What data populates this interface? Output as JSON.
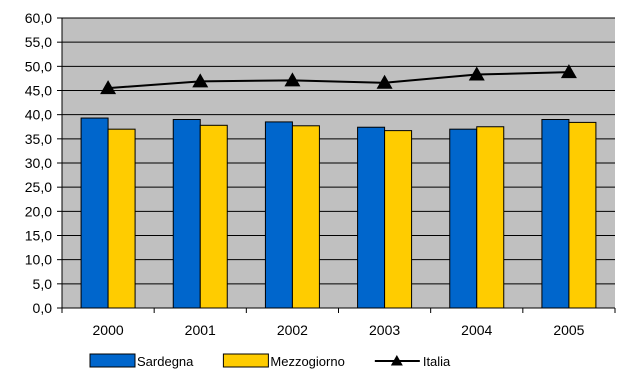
{
  "chart_data": {
    "type": "bar",
    "title": "",
    "xlabel": "",
    "ylabel": "",
    "categories": [
      "2000",
      "2001",
      "2002",
      "2003",
      "2004",
      "2005"
    ],
    "ylim": [
      0,
      60
    ],
    "y_ticks": [
      "0,0",
      "5,0",
      "10,0",
      "15,0",
      "20,0",
      "25,0",
      "30,0",
      "35,0",
      "40,0",
      "45,0",
      "50,0",
      "55,0",
      "60,0"
    ],
    "grid": true,
    "legend_position": "bottom",
    "plot_background": "#c0c0c0",
    "series": [
      {
        "name": "Sardegna",
        "kind": "bar",
        "color": "#0066cc",
        "values": [
          39.3,
          39.0,
          38.5,
          37.4,
          37.0,
          39.0
        ]
      },
      {
        "name": "Mezzogiorno",
        "kind": "bar",
        "color": "#ffcc00",
        "values": [
          37.0,
          37.8,
          37.7,
          36.7,
          37.5,
          38.4
        ]
      },
      {
        "name": "Italia",
        "kind": "line",
        "color": "#000000",
        "marker": "triangle",
        "values": [
          45.5,
          46.9,
          47.1,
          46.6,
          48.3,
          48.8
        ]
      }
    ]
  }
}
